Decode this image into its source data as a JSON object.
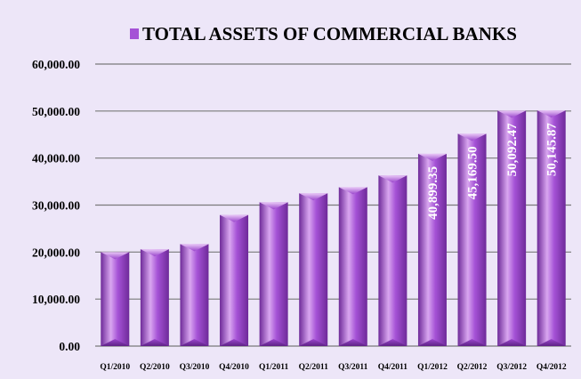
{
  "chart_data": {
    "type": "bar",
    "title": "TOTAL ASSETS OF COMMERCIAL BANKS",
    "legend": {
      "label": "",
      "position": "top"
    },
    "xlabel": "",
    "ylabel": "",
    "ylim": [
      0,
      60000
    ],
    "yticks": [
      "0.00",
      "10,000.00",
      "20,000.00",
      "30,000.00",
      "40,000.00",
      "50,000.00",
      "60,000.00"
    ],
    "grid": true,
    "categories": [
      "Q1/2010",
      "Q2/2010",
      "Q3/2010",
      "Q4/2010",
      "Q1/2011",
      "Q2/2011",
      "Q3/2011",
      "Q4/2011",
      "Q1/2012",
      "Q2/2012",
      "Q3/2012",
      "Q4/2012"
    ],
    "values": [
      20000,
      20600,
      21700,
      27900,
      30600,
      32500,
      33800,
      36300,
      40899.35,
      45169.5,
      50092.47,
      50145.87
    ],
    "data_labels": [
      "",
      "",
      "",
      "",
      "",
      "",
      "",
      "",
      "40,899.35",
      "45,169.50",
      "50,092.47",
      "50,145.87"
    ],
    "colors": {
      "background": "#EDE6F8",
      "bar_light": "#D9A6F0",
      "bar_mid": "#A552D6",
      "bar_dark": "#6E2A99",
      "grid": "#7A7A7A"
    }
  }
}
